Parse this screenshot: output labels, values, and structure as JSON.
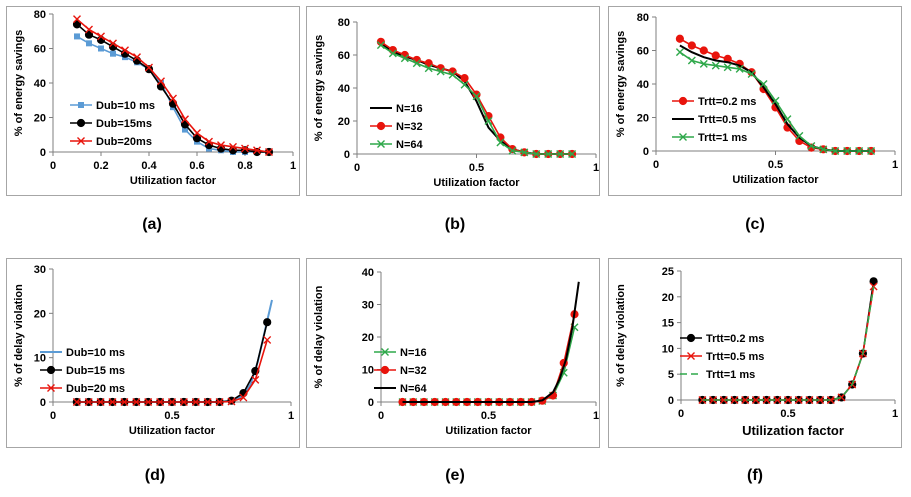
{
  "chart_data": [
    {
      "type": "line",
      "panel": "(a)",
      "xlabel": "Utilization factor",
      "ylabel": "% of energy savings",
      "xlim": [
        0,
        1
      ],
      "ylim": [
        0,
        80
      ],
      "xticks": [
        "0",
        "0.2",
        "0.4",
        "0.6",
        "0.8",
        "1"
      ],
      "xtick_values": [
        0,
        0.2,
        0.4,
        0.6,
        0.8,
        1
      ],
      "yticks": [
        "0",
        "20",
        "40",
        "60",
        "80"
      ],
      "ytick_values": [
        0,
        20,
        40,
        60,
        80
      ],
      "legend_placement": "bottom-left",
      "grid": false,
      "series": [
        {
          "name": "Dub=10 ms",
          "color": "#5b9bd5",
          "marker": "square",
          "line": true,
          "x": [
            0.1,
            0.15,
            0.2,
            0.25,
            0.3,
            0.35,
            0.4,
            0.45,
            0.5,
            0.55,
            0.6,
            0.65,
            0.7,
            0.75,
            0.8,
            0.85,
            0.9
          ],
          "y": [
            67,
            63,
            60,
            57,
            55,
            52,
            48,
            40,
            26,
            13,
            6,
            2,
            1,
            0,
            0,
            0,
            0
          ]
        },
        {
          "name": "Dub=15ms",
          "color": "#000000",
          "marker": "circle",
          "line": true,
          "x": [
            0.1,
            0.15,
            0.2,
            0.25,
            0.3,
            0.35,
            0.4,
            0.45,
            0.5,
            0.55,
            0.6,
            0.65,
            0.7,
            0.75,
            0.8,
            0.85,
            0.9
          ],
          "y": [
            74,
            68,
            65,
            61,
            57,
            53,
            48,
            38,
            28,
            16,
            8,
            4,
            2,
            1,
            1,
            0,
            0
          ]
        },
        {
          "name": "Dub=20ms",
          "color": "#e8140c",
          "marker": "x",
          "line": true,
          "x": [
            0.1,
            0.15,
            0.2,
            0.25,
            0.3,
            0.35,
            0.4,
            0.45,
            0.5,
            0.55,
            0.6,
            0.65,
            0.7,
            0.75,
            0.8,
            0.85,
            0.9
          ],
          "y": [
            77,
            71,
            67,
            63,
            59,
            55,
            49,
            41,
            31,
            19,
            11,
            6,
            4,
            3,
            2,
            1,
            0
          ]
        }
      ]
    },
    {
      "type": "line",
      "panel": "(b)",
      "xlabel": "Utilization factor",
      "ylabel": "% of energy savings",
      "xlim": [
        0,
        1
      ],
      "ylim": [
        0,
        80
      ],
      "xticks": [
        "0",
        "0.5",
        "1"
      ],
      "xtick_values": [
        0,
        0.5,
        1
      ],
      "yticks": [
        "0",
        "20",
        "40",
        "60",
        "80"
      ],
      "ytick_values": [
        0,
        20,
        40,
        60,
        80
      ],
      "legend_placement": "bottom-left",
      "grid": false,
      "series": [
        {
          "name": "N=16",
          "color": "#000000",
          "marker": "none",
          "line": true,
          "x": [
            0.1,
            0.15,
            0.2,
            0.25,
            0.3,
            0.35,
            0.4,
            0.45,
            0.5,
            0.55,
            0.6,
            0.65,
            0.7,
            0.75,
            0.8,
            0.85,
            0.9
          ],
          "y": [
            67,
            62,
            59,
            57,
            54,
            52,
            50,
            44,
            32,
            16,
            8,
            3,
            1,
            0,
            0,
            0,
            0
          ]
        },
        {
          "name": "N=32",
          "color": "#e8140c",
          "marker": "circle",
          "line": true,
          "x": [
            0.1,
            0.15,
            0.2,
            0.25,
            0.3,
            0.35,
            0.4,
            0.45,
            0.5,
            0.55,
            0.6,
            0.65,
            0.7,
            0.75,
            0.8,
            0.85,
            0.9
          ],
          "y": [
            68,
            63,
            60,
            57,
            55,
            52,
            50,
            46,
            36,
            23,
            10,
            3,
            1,
            0,
            0,
            0,
            0
          ]
        },
        {
          "name": "N=64",
          "color": "#2ea84a",
          "marker": "x",
          "line": true,
          "x": [
            0.1,
            0.15,
            0.2,
            0.25,
            0.3,
            0.35,
            0.4,
            0.45,
            0.5,
            0.55,
            0.6,
            0.65,
            0.7,
            0.75,
            0.8,
            0.85,
            0.9
          ],
          "y": [
            66,
            61,
            58,
            55,
            52,
            50,
            48,
            42,
            35,
            20,
            7,
            2,
            1,
            0,
            0,
            0,
            0
          ]
        }
      ]
    },
    {
      "type": "line",
      "panel": "(c)",
      "xlabel": "Utilization factor",
      "ylabel": "% of energy savings",
      "xlim": [
        0,
        1
      ],
      "ylim": [
        0,
        80
      ],
      "xticks": [
        "0",
        "0.5",
        "1"
      ],
      "xtick_values": [
        0,
        0.5,
        1
      ],
      "yticks": [
        "0",
        "20",
        "40",
        "60",
        "80"
      ],
      "ytick_values": [
        0,
        20,
        40,
        60,
        80
      ],
      "legend_placement": "bottom-left",
      "grid": false,
      "series": [
        {
          "name": "Trtt=0.2 ms",
          "color": "#e8140c",
          "marker": "circle",
          "line": true,
          "x": [
            0.1,
            0.15,
            0.2,
            0.25,
            0.3,
            0.35,
            0.4,
            0.45,
            0.5,
            0.55,
            0.6,
            0.65,
            0.7,
            0.75,
            0.8,
            0.85,
            0.9
          ],
          "y": [
            67,
            63,
            60,
            57,
            55,
            52,
            47,
            37,
            26,
            14,
            6,
            2,
            1,
            0,
            0,
            0,
            0
          ]
        },
        {
          "name": "Trtt=0.5 ms",
          "color": "#000000",
          "marker": "none",
          "line": true,
          "x": [
            0.1,
            0.15,
            0.2,
            0.25,
            0.3,
            0.35,
            0.4,
            0.45,
            0.5,
            0.55,
            0.6,
            0.65,
            0.7,
            0.75,
            0.8,
            0.85,
            0.9
          ],
          "y": [
            63,
            59,
            56,
            54,
            53,
            51,
            47,
            38,
            28,
            16,
            8,
            3,
            1,
            0,
            0,
            0,
            0
          ]
        },
        {
          "name": "Trtt=1 ms",
          "color": "#2ea84a",
          "marker": "x",
          "line": true,
          "x": [
            0.1,
            0.15,
            0.2,
            0.25,
            0.3,
            0.35,
            0.4,
            0.45,
            0.5,
            0.55,
            0.6,
            0.65,
            0.7,
            0.75,
            0.8,
            0.85,
            0.9
          ],
          "y": [
            59,
            54,
            52,
            51,
            50,
            49,
            46,
            40,
            30,
            19,
            9,
            3,
            1,
            0,
            0,
            0,
            0
          ]
        }
      ]
    },
    {
      "type": "line",
      "panel": "(d)",
      "xlabel": "Utilization factor",
      "ylabel": "% of delay violation",
      "xlim": [
        0,
        1
      ],
      "ylim": [
        0,
        30
      ],
      "xticks": [
        "0",
        "0.5",
        "1"
      ],
      "xtick_values": [
        0,
        0.5,
        1
      ],
      "yticks": [
        "0",
        "10",
        "20",
        "30"
      ],
      "ytick_values": [
        0,
        10,
        20,
        30
      ],
      "legend_placement": "center-left",
      "grid": false,
      "series": [
        {
          "name": "Dub=10 ms",
          "color": "#5b9bd5",
          "marker": "none",
          "line": true,
          "x": [
            0.1,
            0.15,
            0.2,
            0.25,
            0.3,
            0.35,
            0.4,
            0.45,
            0.5,
            0.55,
            0.6,
            0.65,
            0.7,
            0.75,
            0.8,
            0.83,
            0.86,
            0.89,
            0.92
          ],
          "y": [
            0,
            0,
            0,
            0,
            0,
            0,
            0,
            0,
            0,
            0,
            0,
            0,
            0,
            0.3,
            1.5,
            4,
            9,
            16,
            23
          ]
        },
        {
          "name": "Dub=15 ms",
          "color": "#000000",
          "marker": "circle",
          "line": true,
          "x": [
            0.1,
            0.15,
            0.2,
            0.25,
            0.3,
            0.35,
            0.4,
            0.45,
            0.5,
            0.55,
            0.6,
            0.65,
            0.7,
            0.75,
            0.8,
            0.85,
            0.9
          ],
          "y": [
            0,
            0,
            0,
            0,
            0,
            0,
            0,
            0,
            0,
            0,
            0,
            0,
            0,
            0.3,
            2,
            7,
            18
          ]
        },
        {
          "name": "Dub=20 ms",
          "color": "#e8140c",
          "marker": "x",
          "line": true,
          "x": [
            0.1,
            0.15,
            0.2,
            0.25,
            0.3,
            0.35,
            0.4,
            0.45,
            0.5,
            0.55,
            0.6,
            0.65,
            0.7,
            0.75,
            0.8,
            0.85,
            0.9
          ],
          "y": [
            0,
            0,
            0,
            0,
            0,
            0,
            0,
            0,
            0,
            0,
            0,
            0,
            0,
            0.1,
            1,
            5,
            14
          ]
        }
      ]
    },
    {
      "type": "line",
      "panel": "(e)",
      "xlabel": "Utilization factor",
      "ylabel": "% of delay violation",
      "xlim": [
        0,
        1
      ],
      "ylim": [
        0,
        40
      ],
      "xticks": [
        "0",
        "0.5",
        "1"
      ],
      "xtick_values": [
        0,
        0.5,
        1
      ],
      "yticks": [
        "0",
        "10",
        "20",
        "30",
        "40"
      ],
      "ytick_values": [
        0,
        10,
        20,
        30,
        40
      ],
      "legend_placement": "center-left",
      "grid": false,
      "series": [
        {
          "name": "N=16",
          "color": "#2ea84a",
          "marker": "x",
          "line": true,
          "x": [
            0.1,
            0.15,
            0.2,
            0.25,
            0.3,
            0.35,
            0.4,
            0.45,
            0.5,
            0.55,
            0.6,
            0.65,
            0.7,
            0.75,
            0.8,
            0.85,
            0.9
          ],
          "y": [
            0,
            0,
            0,
            0,
            0,
            0,
            0,
            0,
            0,
            0,
            0,
            0,
            0,
            0.3,
            2,
            9,
            23
          ]
        },
        {
          "name": "N=32",
          "color": "#e8140c",
          "marker": "circle",
          "line": true,
          "x": [
            0.1,
            0.15,
            0.2,
            0.25,
            0.3,
            0.35,
            0.4,
            0.45,
            0.5,
            0.55,
            0.6,
            0.65,
            0.7,
            0.75,
            0.8,
            0.85,
            0.9
          ],
          "y": [
            0,
            0,
            0,
            0,
            0,
            0,
            0,
            0,
            0,
            0,
            0,
            0,
            0,
            0.4,
            2,
            12,
            27
          ]
        },
        {
          "name": "N=64",
          "color": "#000000",
          "marker": "none",
          "line": true,
          "x": [
            0.1,
            0.15,
            0.2,
            0.25,
            0.3,
            0.35,
            0.4,
            0.45,
            0.5,
            0.55,
            0.6,
            0.65,
            0.7,
            0.75,
            0.8,
            0.83,
            0.86,
            0.89,
            0.92
          ],
          "y": [
            0,
            0,
            0,
            0,
            0,
            0,
            0,
            0,
            0,
            0,
            0,
            0,
            0,
            0.5,
            3,
            7,
            13,
            23,
            37
          ]
        }
      ]
    },
    {
      "type": "line",
      "panel": "(f)",
      "xlabel": "Utilization factor",
      "ylabel": "% of delay violation",
      "xlim": [
        0,
        1
      ],
      "ylim": [
        0,
        25
      ],
      "xticks": [
        "0",
        "0.5",
        "1"
      ],
      "xtick_values": [
        0,
        0.5,
        1
      ],
      "yticks": [
        "0",
        "5",
        "10",
        "15",
        "20",
        "25"
      ],
      "ytick_values": [
        0,
        5,
        10,
        15,
        20,
        25
      ],
      "legend_placement": "center-left",
      "grid": false,
      "series": [
        {
          "name": "Trtt=0.2 ms",
          "color": "#000000",
          "marker": "circle",
          "line": true,
          "x": [
            0.1,
            0.15,
            0.2,
            0.25,
            0.3,
            0.35,
            0.4,
            0.45,
            0.5,
            0.55,
            0.6,
            0.65,
            0.7,
            0.75,
            0.8,
            0.85,
            0.9
          ],
          "y": [
            0,
            0,
            0,
            0,
            0,
            0,
            0,
            0,
            0,
            0,
            0,
            0,
            0,
            0.5,
            3,
            9,
            23
          ]
        },
        {
          "name": "Trtt=0.5 ms",
          "color": "#e8140c",
          "marker": "x",
          "line": true,
          "x": [
            0.1,
            0.15,
            0.2,
            0.25,
            0.3,
            0.35,
            0.4,
            0.45,
            0.5,
            0.55,
            0.6,
            0.65,
            0.7,
            0.75,
            0.8,
            0.85,
            0.9
          ],
          "y": [
            0,
            0,
            0,
            0,
            0,
            0,
            0,
            0,
            0,
            0,
            0,
            0,
            0,
            0.5,
            3,
            9,
            22
          ]
        },
        {
          "name": "Trtt=1 ms",
          "color": "#2ea84a",
          "marker": "dash",
          "line": true,
          "x": [
            0.1,
            0.15,
            0.2,
            0.25,
            0.3,
            0.35,
            0.4,
            0.45,
            0.5,
            0.55,
            0.6,
            0.65,
            0.7,
            0.75,
            0.8,
            0.85,
            0.9
          ],
          "y": [
            0,
            0,
            0,
            0,
            0,
            0,
            0,
            0,
            0,
            0,
            0,
            0,
            0,
            0.5,
            3,
            9,
            22
          ]
        }
      ]
    }
  ]
}
